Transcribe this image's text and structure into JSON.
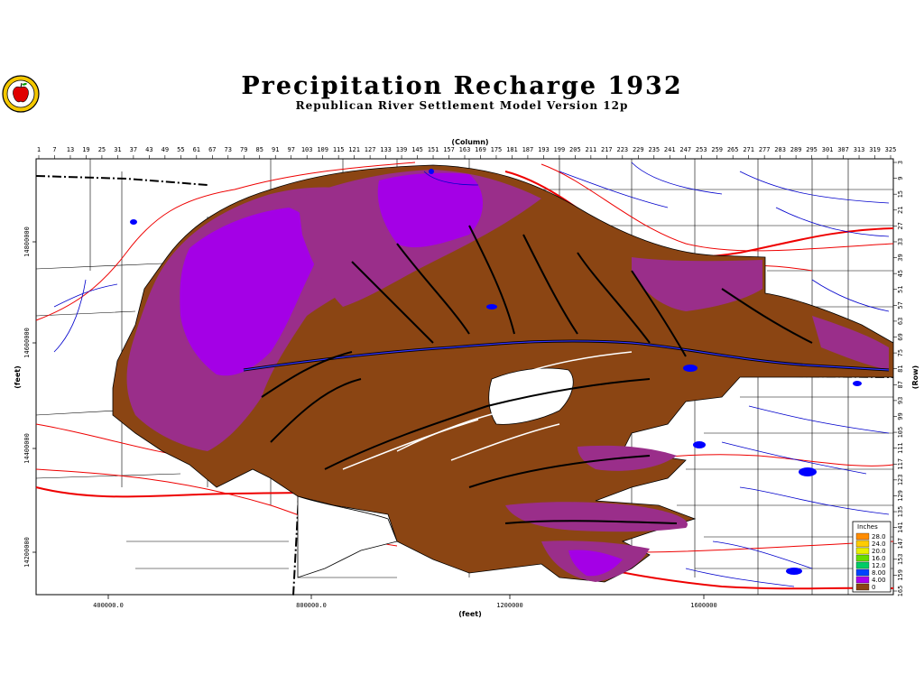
{
  "title": "Precipitation Recharge 1932",
  "subtitle": "Republican River Settlement Model Version 12p",
  "axes": {
    "column_label": "(Column)",
    "row_label": "(Row)",
    "x_label": "(feet)",
    "y_label": "(feet)",
    "column_ticks": [
      "1",
      "7",
      "13",
      "19",
      "25",
      "31",
      "37",
      "43",
      "49",
      "55",
      "61",
      "67",
      "73",
      "79",
      "85",
      "91",
      "97",
      "103",
      "109",
      "115",
      "121",
      "127",
      "133",
      "139",
      "145",
      "151",
      "157",
      "163",
      "169",
      "175",
      "181",
      "187",
      "193",
      "199",
      "205",
      "211",
      "217",
      "223",
      "229",
      "235",
      "241",
      "247",
      "253",
      "259",
      "265",
      "271",
      "277",
      "283",
      "289",
      "295",
      "301",
      "307",
      "313",
      "319",
      "325"
    ],
    "row_ticks": [
      "3",
      "9",
      "15",
      "21",
      "27",
      "33",
      "39",
      "45",
      "51",
      "57",
      "63",
      "69",
      "75",
      "81",
      "87",
      "93",
      "99",
      "105",
      "111",
      "117",
      "123",
      "129",
      "135",
      "141",
      "147",
      "153",
      "159",
      "165"
    ],
    "x_ticks": [
      "400000.0",
      "800000.0",
      "1200000",
      "1600000"
    ],
    "y_ticks": [
      "14800000",
      "14600000",
      "14400000",
      "14200000"
    ]
  },
  "legend": {
    "title": "Inches",
    "entries": [
      {
        "label": "28.0",
        "color": "#ff8c00"
      },
      {
        "label": "24.0",
        "color": "#ffcc00"
      },
      {
        "label": "20.0",
        "color": "#e8f000"
      },
      {
        "label": "16.0",
        "color": "#66dd00"
      },
      {
        "label": "12.0",
        "color": "#00cc66"
      },
      {
        "label": "8.00",
        "color": "#0044ff"
      },
      {
        "label": "4.00",
        "color": "#aa00ee"
      },
      {
        "label": "0",
        "color": "#8b4513"
      }
    ]
  },
  "colors": {
    "recharge_low": "#8b4513",
    "recharge_mid": "#9a2e8a",
    "recharge_high": "#a400e6",
    "rivers": "#0000cc",
    "roads": "#ee0000",
    "boundaries": "#000000"
  },
  "logo_icon": "apple-seal-icon"
}
